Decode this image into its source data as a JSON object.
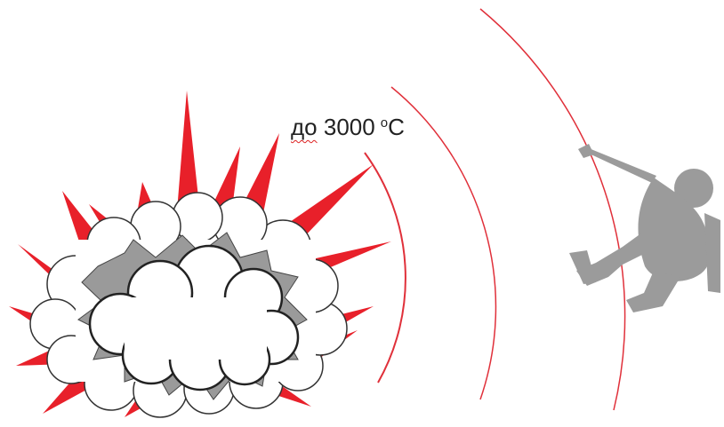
{
  "temperature": {
    "prefix": "до",
    "value": "3000",
    "degree_mark": "o",
    "unit": "C"
  },
  "colors": {
    "flame": "#e8202a",
    "wave": "#e0303a",
    "cloud_fill": "#ffffff",
    "cloud_outline": "#333333",
    "smoke": "#9a9a9a",
    "person": "#9b9b9b"
  },
  "icons": [
    "explosion-icon",
    "shock-wave-icon",
    "falling-person-icon"
  ]
}
